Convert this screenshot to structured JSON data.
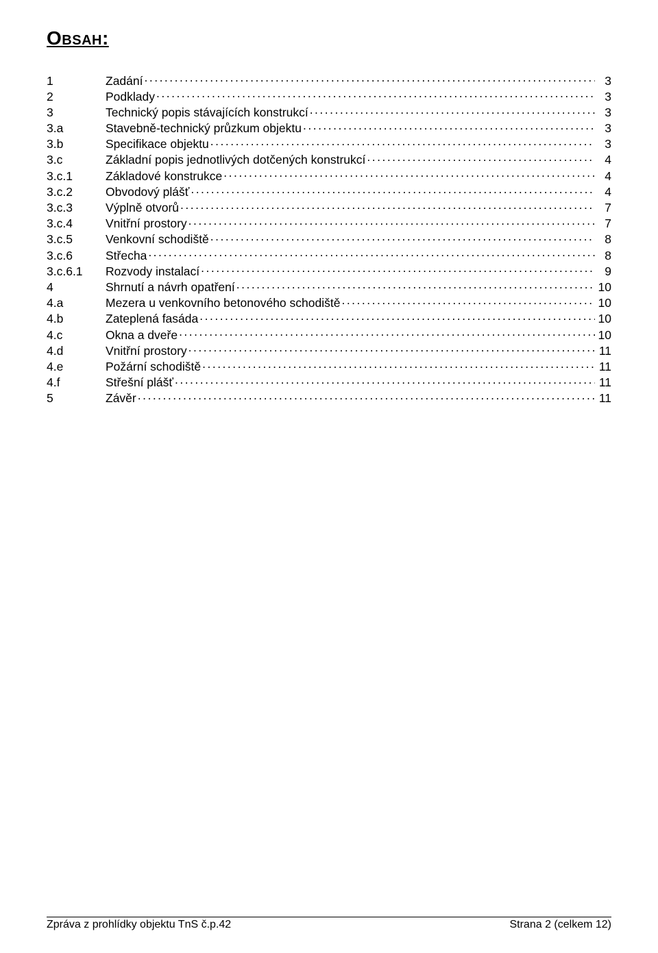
{
  "heading": "Obsah:",
  "toc": [
    {
      "num": "1",
      "title": "Zadání",
      "page": "3"
    },
    {
      "num": "2",
      "title": "Podklady",
      "page": "3"
    },
    {
      "num": "3",
      "title": "Technický popis stávajících konstrukcí",
      "page": "3"
    },
    {
      "num": "3.a",
      "title": "Stavebně-technický průzkum objektu",
      "page": "3"
    },
    {
      "num": "3.b",
      "title": "Specifikace objektu",
      "page": "3"
    },
    {
      "num": "3.c",
      "title": "Základní popis jednotlivých dotčených konstrukcí",
      "page": "4"
    },
    {
      "num": "3.c.1",
      "title": "Základové konstrukce",
      "page": "4"
    },
    {
      "num": "3.c.2",
      "title": "Obvodový plášť",
      "page": "4"
    },
    {
      "num": "3.c.3",
      "title": "Výplně otvorů",
      "page": "7"
    },
    {
      "num": "3.c.4",
      "title": "Vnitřní prostory",
      "page": "7"
    },
    {
      "num": "3.c.5",
      "title": "Venkovní schodiště",
      "page": "8"
    },
    {
      "num": "3.c.6",
      "title": "Střecha",
      "page": "8"
    },
    {
      "num": "3.c.6.1",
      "title": "Rozvody instalací",
      "page": "9"
    },
    {
      "num": "4",
      "title": "Shrnutí a návrh opatření",
      "page": "10"
    },
    {
      "num": "4.a",
      "title": "Mezera u venkovního betonového schodiště",
      "page": "10"
    },
    {
      "num": "4.b",
      "title": "Zateplená fasáda",
      "page": "10"
    },
    {
      "num": "4.c",
      "title": "Okna a dveře",
      "page": "10"
    },
    {
      "num": "4.d",
      "title": "Vnitřní prostory",
      "page": "11"
    },
    {
      "num": "4.e",
      "title": "Požární schodiště",
      "page": "11"
    },
    {
      "num": "4.f",
      "title": "Střešní plášť",
      "page": "11"
    },
    {
      "num": "5",
      "title": "Závěr",
      "page": "11"
    }
  ],
  "footer": {
    "left": "Zpráva z prohlídky objektu TnS č.p.42",
    "right": "Strana 2 (celkem 12)"
  }
}
